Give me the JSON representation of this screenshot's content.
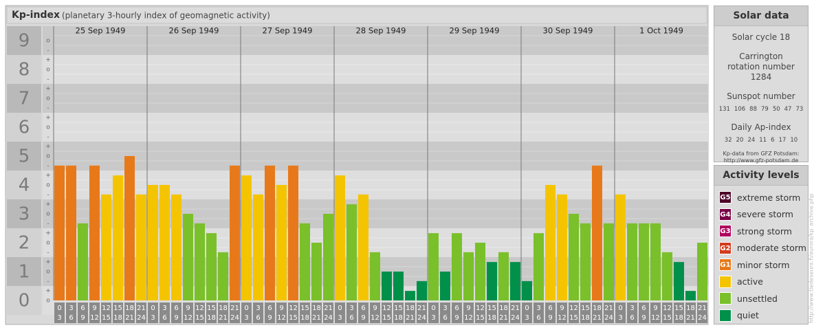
{
  "chart_data": {
    "type": "bar",
    "title": "Kp-index",
    "subtitle": "(planetary 3-hourly index of geomagnetic activity)",
    "days": [
      "25 Sep 1949",
      "26 Sep 1949",
      "27 Sep 1949",
      "28 Sep 1949",
      "29 Sep 1949",
      "30 Sep 1949",
      "1 Oct 1949"
    ],
    "hour_labels": [
      [
        "0",
        "3"
      ],
      [
        "3",
        "6"
      ],
      [
        "6",
        "9"
      ],
      [
        "9",
        "12"
      ],
      [
        "12",
        "15"
      ],
      [
        "15",
        "18"
      ],
      [
        "18",
        "21"
      ],
      [
        "21",
        "24"
      ]
    ],
    "minor_tick_labels": [
      "-",
      "o",
      "+"
    ],
    "values": [
      4.67,
      4.67,
      2.67,
      4.67,
      3.67,
      4.33,
      5,
      3.67,
      4,
      4,
      3.67,
      3,
      2.67,
      2.33,
      1.67,
      4.67,
      4.33,
      3.67,
      4.67,
      4,
      4.67,
      2.67,
      2,
      3,
      4.33,
      3.33,
      3.67,
      1.67,
      1,
      1,
      0.33,
      0.67,
      2.33,
      1,
      2.33,
      1.67,
      2,
      1.33,
      1.67,
      1.33,
      0.67,
      2.33,
      4,
      3.67,
      3,
      2.67,
      4.67,
      2.67,
      3.67,
      2.67,
      2.67,
      2.67,
      1.67,
      1.33,
      0.33,
      2
    ],
    "colors": [
      "#e8791a",
      "#e8791a",
      "#7ac02a",
      "#e8791a",
      "#f5c400",
      "#f5c400",
      "#e8791a",
      "#f5c400",
      "#f5c400",
      "#f5c400",
      "#f5c400",
      "#7ac02a",
      "#7ac02a",
      "#7ac02a",
      "#7ac02a",
      "#e8791a",
      "#f5c400",
      "#f5c400",
      "#e8791a",
      "#f5c400",
      "#e8791a",
      "#7ac02a",
      "#7ac02a",
      "#7ac02a",
      "#f5c400",
      "#7ac02a",
      "#f5c400",
      "#7ac02a",
      "#00904a",
      "#00904a",
      "#00904a",
      "#00904a",
      "#7ac02a",
      "#00904a",
      "#7ac02a",
      "#7ac02a",
      "#7ac02a",
      "#00904a",
      "#7ac02a",
      "#00904a",
      "#00904a",
      "#7ac02a",
      "#f5c400",
      "#f5c400",
      "#7ac02a",
      "#7ac02a",
      "#e8791a",
      "#7ac02a",
      "#f5c400",
      "#7ac02a",
      "#7ac02a",
      "#7ac02a",
      "#7ac02a",
      "#00904a",
      "#00904a",
      "#7ac02a"
    ],
    "ylim": [
      -0.5,
      9.5
    ],
    "yticks": [
      0,
      1,
      2,
      3,
      4,
      5,
      6,
      7,
      8,
      9
    ],
    "grid": true
  },
  "solar_data": {
    "title": "Solar data",
    "cycle": "Solar cycle 18",
    "carrington": "Carrington rotation number 1284",
    "sunspot_title": "Sunspot number",
    "sunspots": [
      131,
      106,
      88,
      79,
      50,
      47,
      73
    ],
    "ap_title": "Daily Ap-index",
    "ap": [
      32,
      20,
      24,
      11,
      6,
      17,
      10
    ],
    "source": "Kp-data from GFZ Potsdam:",
    "source_url": "http://www.gfz-potsdam.de"
  },
  "activity_levels": {
    "title": "Activity levels",
    "items": [
      {
        "badge": "G5",
        "name": "extreme storm",
        "color": "#4d0026"
      },
      {
        "badge": "G4",
        "name": "severe storm",
        "color": "#7a0046"
      },
      {
        "badge": "G3",
        "name": "strong storm",
        "color": "#b0005e"
      },
      {
        "badge": "G2",
        "name": "moderate storm",
        "color": "#d23c1e"
      },
      {
        "badge": "G1",
        "name": "minor storm",
        "color": "#e8791a"
      },
      {
        "badge": "",
        "name": "active",
        "color": "#f5c400"
      },
      {
        "badge": "",
        "name": "unsettled",
        "color": "#7ac02a"
      },
      {
        "badge": "",
        "name": "quiet",
        "color": "#00904a"
      }
    ]
  },
  "credit": "http://www.tiedeseura.fi/aurora/kp_archive.php"
}
